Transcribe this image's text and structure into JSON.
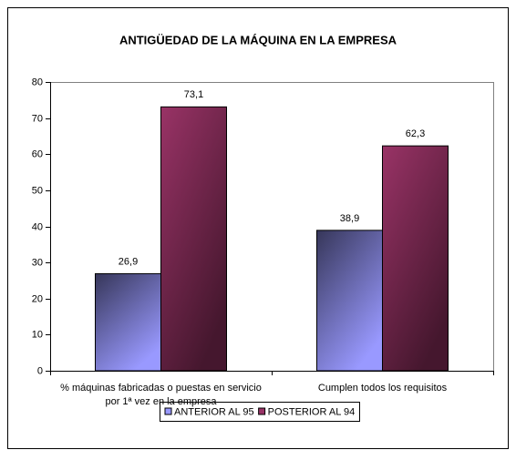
{
  "chart_data": {
    "type": "bar",
    "title": "ANTIGÜEDAD DE LA MÁQUINA EN LA EMPRESA",
    "categories": [
      "% máquinas fabricadas o puestas en servicio por 1ª vez en la empresa",
      "Cumplen todos los requisitos"
    ],
    "series": [
      {
        "name": "ANTERIOR AL 95",
        "color": "#9999ff",
        "values": [
          26.9,
          38.9
        ],
        "value_labels": [
          "26,9",
          "38,9"
        ]
      },
      {
        "name": "POSTERIOR AL 94",
        "color": "#993366",
        "values": [
          73.1,
          62.3
        ],
        "value_labels": [
          "73,1",
          "62,3"
        ]
      }
    ],
    "ylim": [
      0,
      80
    ],
    "yticks": [
      0,
      10,
      20,
      30,
      40,
      50,
      60,
      70,
      80
    ],
    "legend": "bottom"
  }
}
